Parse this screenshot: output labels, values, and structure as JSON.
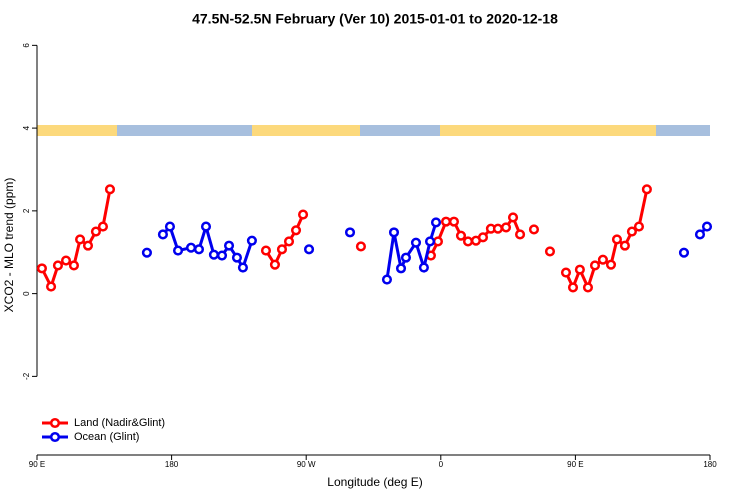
{
  "chart_data": {
    "type": "line",
    "title": "47.5N-52.5N February (Ver 10)   2015-01-01 to 2020-12-18",
    "x_label": "Longitude (deg E)",
    "y_label": "XCO2 - MLO trend (ppm)",
    "xlim": [
      90,
      540
    ],
    "xticks": [
      {
        "value": 90,
        "label": "90 E"
      },
      180,
      {
        "value": 270,
        "label": "90 W"
      },
      {
        "value": 360,
        "label": "0"
      },
      {
        "value": 450,
        "label": "90 E"
      },
      {
        "value": 540,
        "label": "180"
      }
    ],
    "ylim": [
      -3.9,
      6.25
    ],
    "yticks": [
      -2,
      0,
      2,
      4,
      6
    ],
    "legend": "bottomleft",
    "series": [
      {
        "name": "Land (Nadir&Glint)",
        "color": "#ff0000",
        "x": [
          93.3,
          99.4,
          104.0,
          109.4,
          114.7,
          118.8,
          124.1,
          129.4,
          134.1,
          138.8,
          null,
          243.1,
          249.1,
          253.8,
          258.5,
          263.2,
          267.9,
          null,
          306.6,
          null,
          353.4,
          358.1,
          363.5,
          368.8,
          373.5,
          378.2,
          383.5,
          388.2,
          393.5,
          398.2,
          403.6,
          408.3,
          413.0,
          null,
          422.3,
          null,
          433.0,
          null,
          443.7,
          448.4,
          453.0,
          458.4,
          463.1,
          468.4,
          473.8,
          477.8,
          483.1,
          487.8,
          492.5,
          497.8
        ],
        "values": [
          0.61,
          0.17,
          0.68,
          0.8,
          0.68,
          1.31,
          1.16,
          1.5,
          1.62,
          2.52,
          null,
          1.04,
          0.7,
          1.07,
          1.26,
          1.53,
          1.91,
          null,
          1.14,
          null,
          0.92,
          1.26,
          1.74,
          1.74,
          1.4,
          1.26,
          1.28,
          1.36,
          1.57,
          1.57,
          1.6,
          1.84,
          1.43,
          null,
          1.55,
          null,
          1.02,
          null,
          0.51,
          0.15,
          0.58,
          0.15,
          0.68,
          0.82,
          0.7,
          1.31,
          1.16,
          1.5,
          1.62,
          2.52
        ]
      },
      {
        "name": "Ocean (Glint)",
        "color": "#0000ee",
        "x": [
          163.5,
          null,
          174.2,
          178.9,
          184.3,
          193.0,
          198.3,
          203.0,
          208.3,
          213.7,
          218.4,
          223.7,
          227.7,
          233.7,
          null,
          271.9,
          null,
          299.3,
          null,
          324.0,
          328.7,
          333.4,
          336.7,
          343.4,
          348.7,
          352.8,
          356.8,
          null,
          522.6,
          null,
          533.3,
          538.0
        ],
        "values": [
          0.99,
          null,
          1.43,
          1.62,
          1.04,
          1.11,
          1.07,
          1.62,
          0.94,
          0.92,
          1.16,
          0.87,
          0.63,
          1.28,
          null,
          1.07,
          null,
          1.48,
          null,
          0.34,
          1.48,
          0.61,
          0.87,
          1.23,
          0.63,
          1.26,
          1.72,
          null,
          0.99,
          null,
          1.43,
          1.62
        ]
      }
    ]
  }
}
